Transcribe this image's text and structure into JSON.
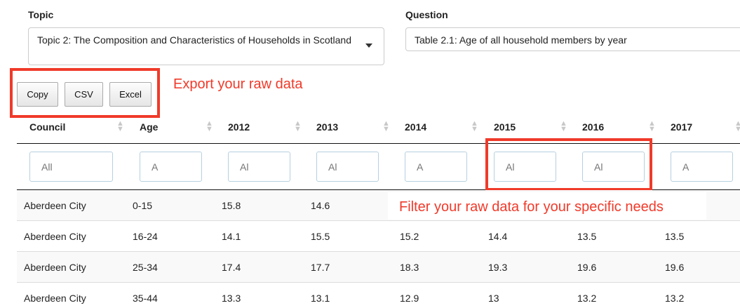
{
  "topic": {
    "label": "Topic",
    "value": "Topic 2: The Composition and Characteristics of Households in Scotland"
  },
  "question": {
    "label": "Question",
    "value": "Table 2.1: Age of all household members by year"
  },
  "export_buttons": [
    "Copy",
    "CSV",
    "Excel"
  ],
  "annotations": {
    "export": "Export your raw data",
    "filter": "Filter your raw data for your specific needs",
    "color": "#f03a2a"
  },
  "table": {
    "columns": [
      "Council",
      "Age",
      "2012",
      "2013",
      "2014",
      "2015",
      "2016",
      "2017"
    ],
    "filter_placeholders": [
      "All",
      "A",
      "Al",
      "Al",
      "A",
      "Al",
      "Al",
      "A"
    ],
    "rows": [
      [
        "Aberdeen City",
        "0-15",
        "15.8",
        "14.6",
        "",
        "",
        "",
        ""
      ],
      [
        "Aberdeen City",
        "16-24",
        "14.1",
        "15.5",
        "15.2",
        "14.4",
        "13.5",
        "13.5"
      ],
      [
        "Aberdeen City",
        "25-34",
        "17.4",
        "17.7",
        "18.3",
        "19.3",
        "19.6",
        "19.6"
      ],
      [
        "Aberdeen City",
        "35-44",
        "13.3",
        "13.1",
        "12.9",
        "13",
        "13.2",
        "13.2"
      ]
    ]
  }
}
